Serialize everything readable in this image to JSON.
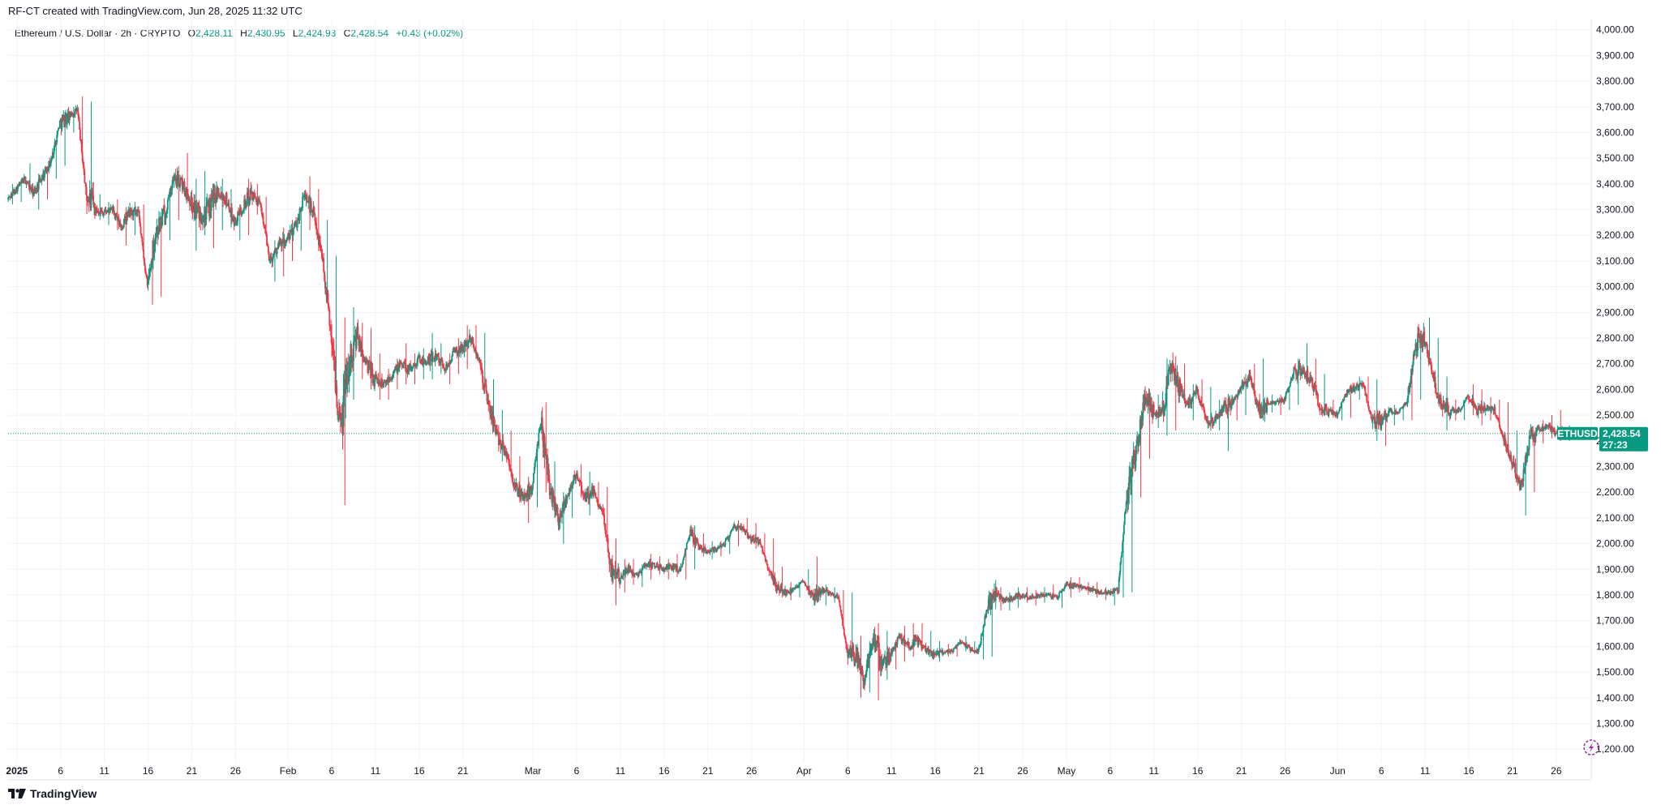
{
  "header": {
    "credit": "RF-CT created with TradingView.com, Jun 28, 2025 11:32 UTC"
  },
  "legend": {
    "symbol": "Ethereum / U.S. Dollar · 2h · CRYPTO",
    "open_label": "O",
    "open": "2,428.11",
    "high_label": "H",
    "high": "2,430.95",
    "low_label": "L",
    "low": "2,424.93",
    "close_label": "C",
    "close": "2,428.54",
    "change": "+0.43 (+0.02%)"
  },
  "footer": {
    "brand": "TradingView"
  },
  "colors": {
    "up": "#089981",
    "down": "#f23645",
    "price_line": "#089981",
    "grid": "#f0f3fa",
    "text": "#131722",
    "accent_icon": "#9c27b0"
  },
  "chart_data": {
    "type": "candlestick",
    "symbol": "ETHUSD",
    "timeframe": "2h",
    "ylim": [
      1150,
      4040
    ],
    "y_ticks": [
      4000,
      3900,
      3800,
      3700,
      3600,
      3500,
      3400,
      3300,
      3200,
      3100,
      3000,
      2900,
      2800,
      2700,
      2600,
      2500,
      2400,
      2300,
      2200,
      2100,
      2000,
      1900,
      1800,
      1700,
      1600,
      1500,
      1400,
      1300,
      1200
    ],
    "y_tick_labels": [
      "4,000.00",
      "3,900.00",
      "3,800.00",
      "3,700.00",
      "3,600.00",
      "3,500.00",
      "3,400.00",
      "3,300.00",
      "3,200.00",
      "3,100.00",
      "3,000.00",
      "2,900.00",
      "2,800.00",
      "2,700.00",
      "2,600.00",
      "2,500.00",
      "2,400.00",
      "2,300.00",
      "2,200.00",
      "2,100.00",
      "2,000.00",
      "1,900.00",
      "1,800.00",
      "1,700.00",
      "1,600.00",
      "1,500.00",
      "1,400.00",
      "1,300.00",
      "1,200.00"
    ],
    "x_ticks": [
      {
        "date": "2025-01-01",
        "label": "2025",
        "bold": true
      },
      {
        "date": "2025-01-06",
        "label": "6"
      },
      {
        "date": "2025-01-11",
        "label": "11"
      },
      {
        "date": "2025-01-16",
        "label": "16"
      },
      {
        "date": "2025-01-21",
        "label": "21"
      },
      {
        "date": "2025-01-26",
        "label": "26"
      },
      {
        "date": "2025-02-01",
        "label": "Feb"
      },
      {
        "date": "2025-02-06",
        "label": "6"
      },
      {
        "date": "2025-02-11",
        "label": "11"
      },
      {
        "date": "2025-02-16",
        "label": "16"
      },
      {
        "date": "2025-02-21",
        "label": "21"
      },
      {
        "date": "2025-03-01",
        "label": "Mar"
      },
      {
        "date": "2025-03-06",
        "label": "6"
      },
      {
        "date": "2025-03-11",
        "label": "11"
      },
      {
        "date": "2025-03-16",
        "label": "16"
      },
      {
        "date": "2025-03-21",
        "label": "21"
      },
      {
        "date": "2025-03-26",
        "label": "26"
      },
      {
        "date": "2025-04-01",
        "label": "Apr"
      },
      {
        "date": "2025-04-06",
        "label": "6"
      },
      {
        "date": "2025-04-11",
        "label": "11"
      },
      {
        "date": "2025-04-16",
        "label": "16"
      },
      {
        "date": "2025-04-21",
        "label": "21"
      },
      {
        "date": "2025-04-26",
        "label": "26"
      },
      {
        "date": "2025-05-01",
        "label": "May"
      },
      {
        "date": "2025-05-06",
        "label": "6"
      },
      {
        "date": "2025-05-11",
        "label": "11"
      },
      {
        "date": "2025-05-16",
        "label": "16"
      },
      {
        "date": "2025-05-21",
        "label": "21"
      },
      {
        "date": "2025-05-26",
        "label": "26"
      },
      {
        "date": "2025-06-01",
        "label": "Jun"
      },
      {
        "date": "2025-06-06",
        "label": "6"
      },
      {
        "date": "2025-06-11",
        "label": "11"
      },
      {
        "date": "2025-06-16",
        "label": "16"
      },
      {
        "date": "2025-06-21",
        "label": "21"
      },
      {
        "date": "2025-06-26",
        "label": "26"
      }
    ],
    "x_range": [
      "2024-12-31",
      "2025-06-30"
    ],
    "last_price": 2428.54,
    "last_price_label": "2,428.54",
    "countdown": "27:23",
    "price_path": [
      [
        "2024-12-31",
        3340,
        3320,
        3400
      ],
      [
        "2025-01-01",
        3380,
        3330,
        3420
      ],
      [
        "2025-01-02",
        3420,
        3360,
        3480
      ],
      [
        "2025-01-03",
        3360,
        3300,
        3440
      ],
      [
        "2025-01-04",
        3430,
        3340,
        3470
      ],
      [
        "2025-01-05",
        3490,
        3420,
        3530
      ],
      [
        "2025-01-06",
        3640,
        3470,
        3680
      ],
      [
        "2025-01-07",
        3660,
        3600,
        3700
      ],
      [
        "2025-01-08",
        3690,
        3640,
        3740
      ],
      [
        "2025-01-09",
        3360,
        3330,
        3720
      ],
      [
        "2025-01-10",
        3300,
        3260,
        3360
      ],
      [
        "2025-01-11",
        3290,
        3240,
        3330
      ],
      [
        "2025-01-12",
        3300,
        3220,
        3340
      ],
      [
        "2025-01-13",
        3230,
        3160,
        3310
      ],
      [
        "2025-01-14",
        3290,
        3200,
        3330
      ],
      [
        "2025-01-15",
        3280,
        3220,
        3320
      ],
      [
        "2025-01-16",
        3000,
        2930,
        3180
      ],
      [
        "2025-01-17",
        3220,
        2960,
        3260
      ],
      [
        "2025-01-18",
        3280,
        3180,
        3320
      ],
      [
        "2025-01-19",
        3420,
        3260,
        3470
      ],
      [
        "2025-01-20",
        3400,
        3340,
        3520
      ],
      [
        "2025-01-21",
        3330,
        3140,
        3420
      ],
      [
        "2025-01-22",
        3280,
        3200,
        3450
      ],
      [
        "2025-01-23",
        3300,
        3150,
        3400
      ],
      [
        "2025-01-24",
        3380,
        3220,
        3420
      ],
      [
        "2025-01-25",
        3340,
        3230,
        3380
      ],
      [
        "2025-01-26",
        3250,
        3180,
        3320
      ],
      [
        "2025-01-27",
        3320,
        3200,
        3420
      ],
      [
        "2025-01-28",
        3360,
        3280,
        3400
      ],
      [
        "2025-01-29",
        3310,
        3240,
        3350
      ],
      [
        "2025-01-30",
        3100,
        3020,
        3180
      ],
      [
        "2025-01-31",
        3160,
        3040,
        3230
      ],
      [
        "2025-02-01",
        3180,
        3100,
        3260
      ],
      [
        "2025-02-02",
        3240,
        3140,
        3290
      ],
      [
        "2025-02-03",
        3360,
        3220,
        3430
      ],
      [
        "2025-02-04",
        3280,
        3180,
        3380
      ],
      [
        "2025-02-05",
        3120,
        3040,
        3260
      ],
      [
        "2025-02-06",
        2820,
        2760,
        3120
      ],
      [
        "2025-02-07",
        2460,
        2150,
        2880
      ],
      [
        "2025-02-08",
        2720,
        2560,
        2920
      ],
      [
        "2025-02-09",
        2800,
        2640,
        2860
      ],
      [
        "2025-02-10",
        2700,
        2600,
        2840
      ],
      [
        "2025-02-11",
        2640,
        2560,
        2740
      ],
      [
        "2025-02-12",
        2620,
        2560,
        2680
      ],
      [
        "2025-02-13",
        2660,
        2600,
        2720
      ],
      [
        "2025-02-14",
        2700,
        2620,
        2780
      ],
      [
        "2025-02-15",
        2680,
        2620,
        2740
      ],
      [
        "2025-02-16",
        2720,
        2640,
        2760
      ],
      [
        "2025-02-17",
        2700,
        2640,
        2820
      ],
      [
        "2025-02-18",
        2740,
        2660,
        2780
      ],
      [
        "2025-02-19",
        2680,
        2620,
        2740
      ],
      [
        "2025-02-20",
        2740,
        2660,
        2800
      ],
      [
        "2025-02-21",
        2760,
        2680,
        2850
      ],
      [
        "2025-02-22",
        2800,
        2720,
        2850
      ],
      [
        "2025-02-23",
        2700,
        2620,
        2820
      ],
      [
        "2025-02-24",
        2540,
        2460,
        2640
      ],
      [
        "2025-02-25",
        2420,
        2320,
        2520
      ],
      [
        "2025-02-26",
        2360,
        2280,
        2440
      ],
      [
        "2025-02-27",
        2220,
        2160,
        2340
      ],
      [
        "2025-02-28",
        2180,
        2080,
        2260
      ],
      [
        "2025-03-01",
        2220,
        2140,
        2260
      ],
      [
        "2025-03-02",
        2480,
        2200,
        2550
      ],
      [
        "2025-03-03",
        2220,
        2100,
        2320
      ],
      [
        "2025-03-04",
        2100,
        2000,
        2200
      ],
      [
        "2025-03-05",
        2190,
        2100,
        2240
      ],
      [
        "2025-03-06",
        2270,
        2180,
        2310
      ],
      [
        "2025-03-07",
        2180,
        2110,
        2280
      ],
      [
        "2025-03-08",
        2200,
        2140,
        2240
      ],
      [
        "2025-03-09",
        2120,
        2000,
        2220
      ],
      [
        "2025-03-10",
        1900,
        1760,
        2020
      ],
      [
        "2025-03-11",
        1880,
        1810,
        1940
      ],
      [
        "2025-03-12",
        1900,
        1840,
        1940
      ],
      [
        "2025-03-13",
        1880,
        1830,
        1920
      ],
      [
        "2025-03-14",
        1920,
        1860,
        1960
      ],
      [
        "2025-03-15",
        1920,
        1880,
        1950
      ],
      [
        "2025-03-16",
        1900,
        1860,
        1940
      ],
      [
        "2025-03-17",
        1910,
        1870,
        1960
      ],
      [
        "2025-03-18",
        1900,
        1860,
        1930
      ],
      [
        "2025-03-19",
        2040,
        1900,
        2070
      ],
      [
        "2025-03-20",
        1990,
        1950,
        2040
      ],
      [
        "2025-03-21",
        1970,
        1940,
        2010
      ],
      [
        "2025-03-22",
        1980,
        1950,
        2010
      ],
      [
        "2025-03-23",
        2000,
        1960,
        2030
      ],
      [
        "2025-03-24",
        2060,
        1990,
        2090
      ],
      [
        "2025-03-25",
        2060,
        2020,
        2100
      ],
      [
        "2025-03-26",
        2020,
        1980,
        2080
      ],
      [
        "2025-03-27",
        2010,
        1980,
        2040
      ],
      [
        "2025-03-28",
        1900,
        1870,
        2020
      ],
      [
        "2025-03-29",
        1830,
        1790,
        1910
      ],
      [
        "2025-03-30",
        1810,
        1780,
        1850
      ],
      [
        "2025-03-31",
        1820,
        1790,
        1850
      ],
      [
        "2025-04-01",
        1860,
        1800,
        1900
      ],
      [
        "2025-04-02",
        1800,
        1770,
        1950
      ],
      [
        "2025-04-03",
        1820,
        1760,
        1840
      ],
      [
        "2025-04-04",
        1810,
        1770,
        1830
      ],
      [
        "2025-04-05",
        1790,
        1760,
        1820
      ],
      [
        "2025-04-06",
        1580,
        1540,
        1810
      ],
      [
        "2025-04-07",
        1560,
        1400,
        1640
      ],
      [
        "2025-04-08",
        1470,
        1420,
        1620
      ],
      [
        "2025-04-09",
        1640,
        1390,
        1690
      ],
      [
        "2025-04-10",
        1530,
        1470,
        1660
      ],
      [
        "2025-04-11",
        1570,
        1510,
        1600
      ],
      [
        "2025-04-12",
        1640,
        1540,
        1680
      ],
      [
        "2025-04-13",
        1600,
        1560,
        1690
      ],
      [
        "2025-04-14",
        1620,
        1580,
        1690
      ],
      [
        "2025-04-15",
        1590,
        1560,
        1660
      ],
      [
        "2025-04-16",
        1570,
        1540,
        1620
      ],
      [
        "2025-04-17",
        1580,
        1560,
        1610
      ],
      [
        "2025-04-18",
        1580,
        1560,
        1600
      ],
      [
        "2025-04-19",
        1620,
        1580,
        1640
      ],
      [
        "2025-04-20",
        1590,
        1570,
        1620
      ],
      [
        "2025-04-21",
        1580,
        1550,
        1640
      ],
      [
        "2025-04-22",
        1750,
        1560,
        1790
      ],
      [
        "2025-04-23",
        1800,
        1740,
        1830
      ],
      [
        "2025-04-24",
        1780,
        1740,
        1810
      ],
      [
        "2025-04-25",
        1790,
        1750,
        1830
      ],
      [
        "2025-04-26",
        1800,
        1770,
        1830
      ],
      [
        "2025-04-27",
        1790,
        1760,
        1820
      ],
      [
        "2025-04-28",
        1800,
        1770,
        1830
      ],
      [
        "2025-04-29",
        1800,
        1780,
        1840
      ],
      [
        "2025-04-30",
        1790,
        1750,
        1810
      ],
      [
        "2025-05-01",
        1840,
        1790,
        1870
      ],
      [
        "2025-05-02",
        1840,
        1810,
        1870
      ],
      [
        "2025-05-03",
        1830,
        1800,
        1850
      ],
      [
        "2025-05-04",
        1820,
        1790,
        1850
      ],
      [
        "2025-05-05",
        1810,
        1780,
        1830
      ],
      [
        "2025-05-06",
        1810,
        1760,
        1830
      ],
      [
        "2025-05-07",
        1820,
        1790,
        1880
      ],
      [
        "2025-05-08",
        2200,
        1810,
        2240
      ],
      [
        "2025-05-09",
        2350,
        2180,
        2420
      ],
      [
        "2025-05-10",
        2560,
        2330,
        2590
      ],
      [
        "2025-05-11",
        2520,
        2450,
        2580
      ],
      [
        "2025-05-12",
        2510,
        2420,
        2720
      ],
      [
        "2025-05-13",
        2680,
        2440,
        2730
      ],
      [
        "2025-05-14",
        2610,
        2560,
        2700
      ],
      [
        "2025-05-15",
        2540,
        2480,
        2620
      ],
      [
        "2025-05-16",
        2600,
        2520,
        2640
      ],
      [
        "2025-05-17",
        2490,
        2440,
        2610
      ],
      [
        "2025-05-18",
        2480,
        2440,
        2560
      ],
      [
        "2025-05-19",
        2530,
        2360,
        2570
      ],
      [
        "2025-05-20",
        2540,
        2480,
        2580
      ],
      [
        "2025-05-21",
        2600,
        2500,
        2660
      ],
      [
        "2025-05-22",
        2660,
        2590,
        2700
      ],
      [
        "2025-05-23",
        2520,
        2480,
        2720
      ],
      [
        "2025-05-24",
        2540,
        2510,
        2580
      ],
      [
        "2025-05-25",
        2550,
        2500,
        2580
      ],
      [
        "2025-05-26",
        2560,
        2520,
        2590
      ],
      [
        "2025-05-27",
        2660,
        2540,
        2720
      ],
      [
        "2025-05-28",
        2680,
        2620,
        2780
      ],
      [
        "2025-05-29",
        2640,
        2580,
        2720
      ],
      [
        "2025-05-30",
        2540,
        2500,
        2660
      ],
      [
        "2025-05-31",
        2520,
        2490,
        2560
      ],
      [
        "2025-06-01",
        2500,
        2480,
        2540
      ],
      [
        "2025-06-02",
        2580,
        2490,
        2620
      ],
      [
        "2025-06-03",
        2600,
        2560,
        2650
      ],
      [
        "2025-06-04",
        2620,
        2580,
        2650
      ],
      [
        "2025-06-05",
        2480,
        2400,
        2640
      ],
      [
        "2025-06-06",
        2470,
        2380,
        2520
      ],
      [
        "2025-06-07",
        2520,
        2460,
        2540
      ],
      [
        "2025-06-08",
        2510,
        2480,
        2540
      ],
      [
        "2025-06-09",
        2550,
        2480,
        2620
      ],
      [
        "2025-06-10",
        2780,
        2560,
        2830
      ],
      [
        "2025-06-11",
        2800,
        2740,
        2880
      ],
      [
        "2025-06-12",
        2640,
        2600,
        2800
      ],
      [
        "2025-06-13",
        2530,
        2440,
        2650
      ],
      [
        "2025-06-14",
        2520,
        2480,
        2560
      ],
      [
        "2025-06-15",
        2520,
        2480,
        2550
      ],
      [
        "2025-06-16",
        2580,
        2500,
        2620
      ],
      [
        "2025-06-17",
        2520,
        2460,
        2600
      ],
      [
        "2025-06-18",
        2530,
        2480,
        2570
      ],
      [
        "2025-06-19",
        2520,
        2490,
        2560
      ],
      [
        "2025-06-20",
        2420,
        2380,
        2550
      ],
      [
        "2025-06-21",
        2320,
        2250,
        2440
      ],
      [
        "2025-06-22",
        2220,
        2110,
        2320
      ],
      [
        "2025-06-23",
        2410,
        2200,
        2440
      ],
      [
        "2025-06-24",
        2440,
        2390,
        2480
      ],
      [
        "2025-06-25",
        2460,
        2410,
        2500
      ],
      [
        "2025-06-26",
        2430,
        2400,
        2520
      ],
      [
        "2025-06-27",
        2430,
        2400,
        2460
      ],
      [
        "2025-06-28",
        2428.54,
        2410,
        2440
      ]
    ]
  }
}
